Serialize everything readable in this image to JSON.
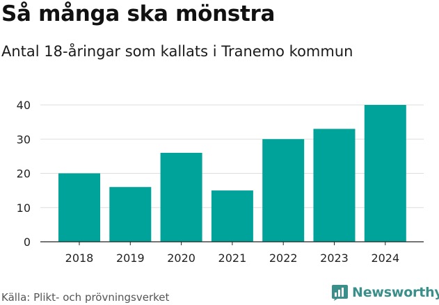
{
  "title": "Så många ska mönstra",
  "subtitle": "Antal 18-åringar som kallats i Tranemo kommun",
  "source": "Källa: Plikt- och prövningsverket",
  "brand": {
    "name": "Newsworthy",
    "icon": "bar-chart-logo-icon",
    "color": "#3a8f8a"
  },
  "colors": {
    "bar": "#00a39a",
    "grid": "#dddddd",
    "axis": "#222222",
    "tick_text": "#222222"
  },
  "chart_data": {
    "type": "bar",
    "title": "Så många ska mönstra",
    "subtitle": "Antal 18-åringar som kallats i Tranemo kommun",
    "categories": [
      "2018",
      "2019",
      "2020",
      "2021",
      "2022",
      "2023",
      "2024"
    ],
    "values": [
      20,
      16,
      26,
      15,
      30,
      33,
      40
    ],
    "xlabel": "",
    "ylabel": "",
    "ylim": [
      0,
      40
    ],
    "yticks": [
      "0",
      "10",
      "20",
      "30",
      "40"
    ],
    "grid": true,
    "legend": "none"
  }
}
